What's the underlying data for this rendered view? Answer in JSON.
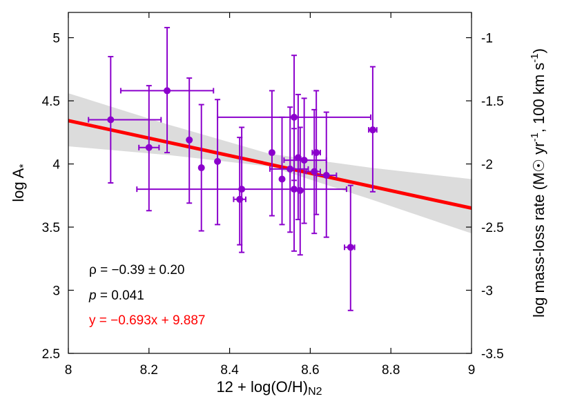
{
  "chart_data": {
    "type": "scatter",
    "xlabel": "12 + log(O/H)",
    "xlabel_subscript": "N2",
    "ylabel": "log A",
    "ylabel_subscript": "*",
    "y2label": "log mass-loss rate (M",
    "y2label_sun": "☉",
    "y2label_tail": " yr",
    "y2label_exp": "-1",
    "y2label_end": ", 100 km s",
    "y2label_end_exp": "-1",
    "y2label_close": ")",
    "xlim": [
      8,
      9
    ],
    "ylim": [
      2.5,
      5.2
    ],
    "y2lim": [
      -3.5,
      -0.8
    ],
    "x_ticks": [
      "8",
      "8.2",
      "8.4",
      "8.6",
      "8.8",
      "9"
    ],
    "y_ticks": [
      "2.5",
      "3",
      "3.5",
      "4",
      "4.5",
      "5"
    ],
    "y2_ticks": [
      "-3.5",
      "-3",
      "-2.5",
      "-2",
      "-1.5",
      "-1"
    ],
    "grid": false,
    "colors": {
      "points": "#8b00cc",
      "fit": "#ff0000",
      "band": "#dcdcdc"
    },
    "points": [
      {
        "x": 8.105,
        "y": 4.35,
        "xlo": 8.05,
        "xhi": 8.23,
        "ylo": 3.85,
        "yhi": 4.85
      },
      {
        "x": 8.2,
        "y": 4.13,
        "xlo": 8.175,
        "xhi": 8.225,
        "ylo": 3.63,
        "yhi": 4.62
      },
      {
        "x": 8.245,
        "y": 4.58,
        "xlo": 8.13,
        "xhi": 8.36,
        "ylo": 4.09,
        "yhi": 5.08
      },
      {
        "x": 8.3,
        "y": 4.19,
        "xlo": 8.3,
        "xhi": 8.3,
        "ylo": 3.69,
        "yhi": 4.68
      },
      {
        "x": 8.33,
        "y": 3.97,
        "xlo": 8.33,
        "xhi": 8.33,
        "ylo": 3.47,
        "yhi": 4.47
      },
      {
        "x": 8.37,
        "y": 4.02,
        "xlo": 8.37,
        "xhi": 8.37,
        "ylo": 3.52,
        "yhi": 4.51
      },
      {
        "x": 8.43,
        "y": 3.8,
        "xlo": 8.17,
        "xhi": 8.69,
        "ylo": 3.3,
        "yhi": 4.29
      },
      {
        "x": 8.425,
        "y": 3.72,
        "xlo": 8.41,
        "xhi": 8.44,
        "ylo": 3.36,
        "yhi": 4.21
      },
      {
        "x": 8.505,
        "y": 4.09,
        "xlo": 8.505,
        "xhi": 8.505,
        "ylo": 3.59,
        "yhi": 4.58
      },
      {
        "x": 8.53,
        "y": 3.88,
        "xlo": 8.53,
        "xhi": 8.53,
        "ylo": 3.52,
        "yhi": 4.37
      },
      {
        "x": 8.55,
        "y": 3.96,
        "xlo": 8.5,
        "xhi": 8.595,
        "ylo": 3.46,
        "yhi": 4.45
      },
      {
        "x": 8.56,
        "y": 4.37,
        "xlo": 8.37,
        "xhi": 8.75,
        "ylo": 3.87,
        "yhi": 4.86
      },
      {
        "x": 8.56,
        "y": 3.8,
        "xlo": 8.56,
        "xhi": 8.56,
        "ylo": 3.31,
        "yhi": 4.28
      },
      {
        "x": 8.57,
        "y": 4.05,
        "xlo": 8.57,
        "xhi": 8.57,
        "ylo": 3.56,
        "yhi": 4.55
      },
      {
        "x": 8.575,
        "y": 3.79,
        "xlo": 8.575,
        "xhi": 8.575,
        "ylo": 3.28,
        "yhi": 4.29
      },
      {
        "x": 8.585,
        "y": 4.03,
        "xlo": 8.535,
        "xhi": 8.64,
        "ylo": 3.53,
        "yhi": 4.52
      },
      {
        "x": 8.61,
        "y": 3.94,
        "xlo": 8.59,
        "xhi": 8.625,
        "ylo": 3.45,
        "yhi": 4.43
      },
      {
        "x": 8.615,
        "y": 4.09,
        "xlo": 8.605,
        "xhi": 8.625,
        "ylo": 3.6,
        "yhi": 4.58
      },
      {
        "x": 8.64,
        "y": 3.91,
        "xlo": 8.615,
        "xhi": 8.665,
        "ylo": 3.42,
        "yhi": 4.41
      },
      {
        "x": 8.7,
        "y": 3.34,
        "xlo": 8.685,
        "xhi": 8.71,
        "ylo": 2.84,
        "yhi": 3.83
      },
      {
        "x": 8.755,
        "y": 4.27,
        "xlo": 8.745,
        "xhi": 8.765,
        "ylo": 3.78,
        "yhi": 4.77
      }
    ],
    "fit": {
      "slope": -0.693,
      "intercept": 9.887
    },
    "band": [
      {
        "x": 8.0,
        "lo": 4.14,
        "hi": 4.56
      },
      {
        "x": 8.25,
        "lo": 4.07,
        "hi": 4.31
      },
      {
        "x": 8.5,
        "lo": 3.98,
        "hi": 4.08
      },
      {
        "x": 8.75,
        "lo": 3.72,
        "hi": 3.97
      },
      {
        "x": 9.0,
        "lo": 3.45,
        "hi": 3.88
      }
    ],
    "annotations": {
      "rho": "ρ = −0.39 ± 0.20",
      "p_sym": "p",
      "p_val": " = 0.041",
      "fit_eq": "y = −0.693x + 9.887"
    }
  }
}
